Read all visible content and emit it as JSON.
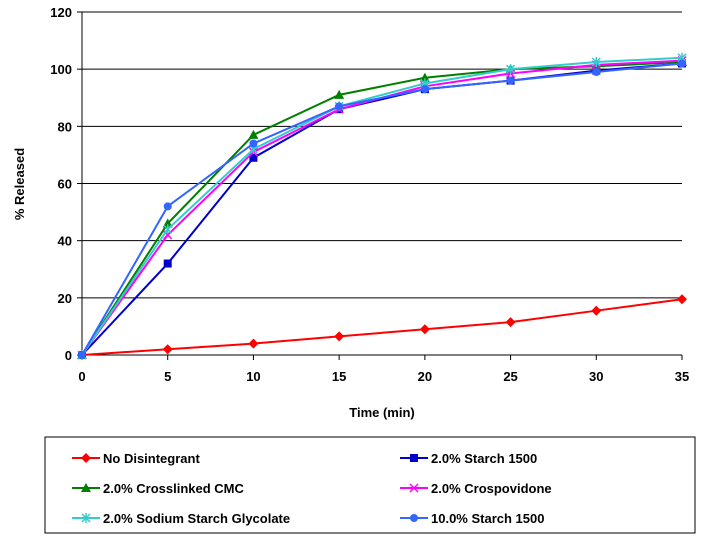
{
  "chart_data": {
    "type": "line",
    "title": "",
    "xlabel": "Time (min)",
    "ylabel": "% Released",
    "x": [
      0,
      5,
      10,
      15,
      20,
      25,
      30,
      35
    ],
    "xlim": [
      0,
      35
    ],
    "ylim": [
      0,
      120
    ],
    "x_ticks": [
      0,
      5,
      10,
      15,
      20,
      25,
      30,
      35
    ],
    "y_ticks": [
      0,
      20,
      40,
      60,
      80,
      100,
      120
    ],
    "grid": "horizontal",
    "legend_position": "bottom",
    "series": [
      {
        "name": "No Disintegrant",
        "color": "#ff0000",
        "marker": "diamond",
        "values": [
          0,
          2,
          4,
          6.5,
          9,
          11.5,
          15.5,
          19.5
        ]
      },
      {
        "name": "2.0% Starch 1500",
        "color": "#0000cc",
        "marker": "square",
        "values": [
          0,
          32,
          69,
          86,
          93,
          96,
          99.5,
          102
        ]
      },
      {
        "name": "2.0% Crosslinked CMC",
        "color": "#008000",
        "marker": "triangle",
        "values": [
          0,
          46,
          77,
          91,
          97,
          100,
          101,
          102.5
        ]
      },
      {
        "name": "2.0% Crospovidone",
        "color": "#ff00ff",
        "marker": "x",
        "values": [
          0,
          42,
          71,
          86,
          94,
          98.5,
          101.5,
          103
        ]
      },
      {
        "name": "2.0% Sodium Starch Glycolate",
        "color": "#33cccc",
        "marker": "asterisk",
        "values": [
          0,
          44,
          72,
          87,
          95,
          100,
          102.5,
          104
        ]
      },
      {
        "name": "10.0% Starch 1500",
        "color": "#3366ff",
        "marker": "circle",
        "values": [
          0,
          52,
          74,
          87,
          93,
          96,
          99,
          102
        ]
      }
    ]
  }
}
